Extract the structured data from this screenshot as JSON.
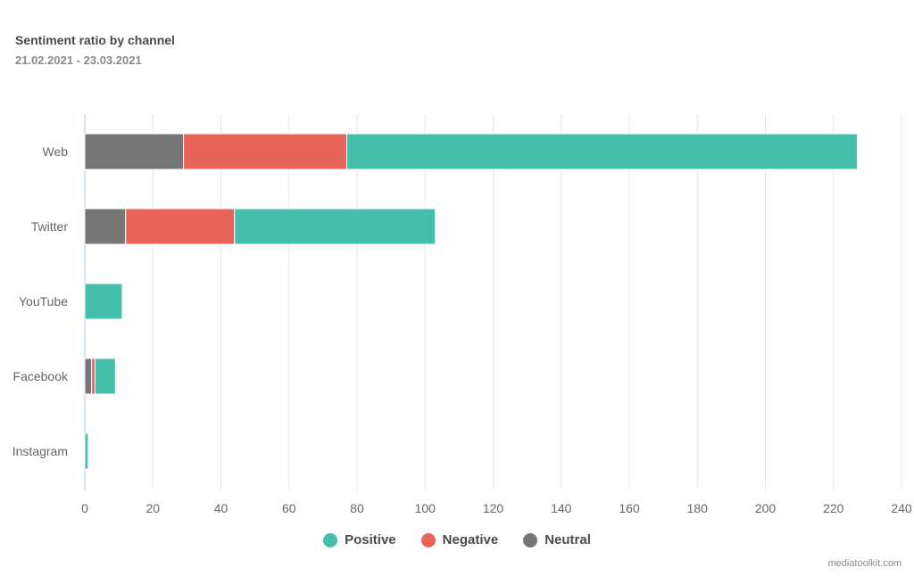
{
  "header": {
    "title": "Sentiment ratio by channel",
    "subtitle": "21.02.2021 - 23.03.2021"
  },
  "legend": {
    "positive_label": "Positive",
    "negative_label": "Negative",
    "neutral_label": "Neutral"
  },
  "footer": {
    "credit": "mediatoolkit.com"
  },
  "colors": {
    "positive": "#44bfa9",
    "negative": "#e8635a",
    "neutral": "#767676",
    "grid": "#e3e7ee",
    "axis": "#c9d9ef",
    "tick_text": "#666666"
  },
  "chart_data": {
    "type": "bar",
    "orientation": "horizontal",
    "stacked": true,
    "categories": [
      "Web",
      "Twitter",
      "YouTube",
      "Facebook",
      "Instagram"
    ],
    "series": [
      {
        "name": "Neutral",
        "values": [
          29,
          12,
          0,
          2,
          0
        ]
      },
      {
        "name": "Negative",
        "values": [
          48,
          32,
          0,
          1,
          0
        ]
      },
      {
        "name": "Positive",
        "values": [
          150,
          59,
          11,
          6,
          1
        ]
      }
    ],
    "xlim": [
      0,
      240
    ],
    "x_ticks": [
      0,
      20,
      40,
      60,
      80,
      100,
      120,
      140,
      160,
      180,
      200,
      220,
      240
    ],
    "grid": true,
    "legend_position": "bottom"
  }
}
